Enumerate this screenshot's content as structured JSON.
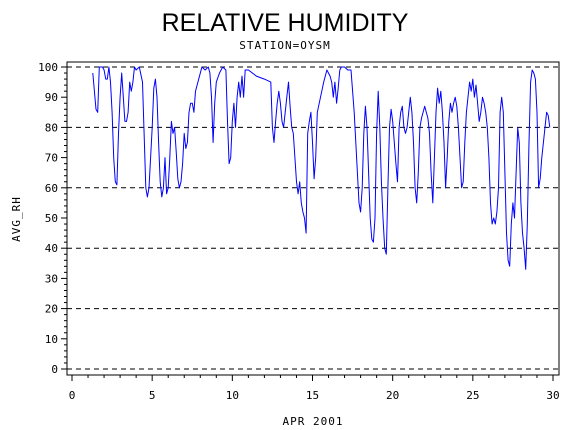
{
  "chart_data": {
    "type": "line",
    "title": "RELATIVE HUMIDITY",
    "subtitle": "STATION=OYSM",
    "xlabel": "APR 2001",
    "ylabel": "AVG_RH",
    "xlim": [
      0,
      30
    ],
    "ylim": [
      0,
      100
    ],
    "x_ticks": [
      0,
      5,
      10,
      15,
      20,
      25,
      30
    ],
    "y_ticks": [
      0,
      10,
      20,
      30,
      40,
      50,
      60,
      70,
      80,
      90,
      100
    ],
    "grid": "horizontal dashed at 0, 20, 40, 60, 80, 100",
    "series": [
      {
        "color": "#0000ff",
        "points": [
          [
            1.3,
            98
          ],
          [
            1.5,
            86
          ],
          [
            1.6,
            85
          ],
          [
            1.7,
            100
          ],
          [
            1.9,
            100
          ],
          [
            2.0,
            99
          ],
          [
            2.1,
            96
          ],
          [
            2.2,
            96
          ],
          [
            2.3,
            100
          ],
          [
            2.4,
            95
          ],
          [
            2.5,
            85
          ],
          [
            2.6,
            70
          ],
          [
            2.7,
            62
          ],
          [
            2.8,
            61
          ],
          [
            2.9,
            78
          ],
          [
            3.0,
            90
          ],
          [
            3.1,
            98
          ],
          [
            3.2,
            90
          ],
          [
            3.3,
            82
          ],
          [
            3.4,
            82
          ],
          [
            3.5,
            85
          ],
          [
            3.6,
            95
          ],
          [
            3.7,
            92
          ],
          [
            3.8,
            95
          ],
          [
            3.9,
            100
          ],
          [
            4.0,
            99
          ],
          [
            4.2,
            100
          ],
          [
            4.4,
            95
          ],
          [
            4.6,
            60
          ],
          [
            4.7,
            57
          ],
          [
            4.8,
            60
          ],
          [
            5.0,
            80
          ],
          [
            5.1,
            93
          ],
          [
            5.2,
            96
          ],
          [
            5.3,
            90
          ],
          [
            5.4,
            75
          ],
          [
            5.5,
            62
          ],
          [
            5.6,
            57
          ],
          [
            5.7,
            60
          ],
          [
            5.8,
            70
          ],
          [
            5.9,
            58
          ],
          [
            6.0,
            60
          ],
          [
            6.1,
            70
          ],
          [
            6.2,
            82
          ],
          [
            6.3,
            78
          ],
          [
            6.4,
            80
          ],
          [
            6.5,
            72
          ],
          [
            6.6,
            63
          ],
          [
            6.7,
            60
          ],
          [
            6.8,
            62
          ],
          [
            6.9,
            68
          ],
          [
            7.0,
            78
          ],
          [
            7.1,
            73
          ],
          [
            7.2,
            75
          ],
          [
            7.3,
            85
          ],
          [
            7.4,
            88
          ],
          [
            7.5,
            88
          ],
          [
            7.6,
            85
          ],
          [
            7.7,
            92
          ],
          [
            7.9,
            96
          ],
          [
            8.1,
            100
          ],
          [
            8.3,
            99
          ],
          [
            8.5,
            100
          ],
          [
            8.6,
            98
          ],
          [
            8.7,
            90
          ],
          [
            8.8,
            75
          ],
          [
            8.9,
            88
          ],
          [
            9.0,
            95
          ],
          [
            9.2,
            98
          ],
          [
            9.4,
            100
          ],
          [
            9.6,
            99
          ],
          [
            9.7,
            82
          ],
          [
            9.8,
            68
          ],
          [
            9.9,
            70
          ],
          [
            10.0,
            82
          ],
          [
            10.1,
            88
          ],
          [
            10.2,
            80
          ],
          [
            10.3,
            90
          ],
          [
            10.4,
            95
          ],
          [
            10.5,
            90
          ],
          [
            10.6,
            97
          ],
          [
            10.7,
            90
          ],
          [
            10.8,
            99
          ],
          [
            11.0,
            99
          ],
          [
            11.5,
            97
          ],
          [
            12.0,
            96
          ],
          [
            12.4,
            95
          ],
          [
            12.5,
            80
          ],
          [
            12.6,
            75
          ],
          [
            12.7,
            82
          ],
          [
            12.8,
            88
          ],
          [
            12.9,
            92
          ],
          [
            13.0,
            88
          ],
          [
            13.1,
            82
          ],
          [
            13.2,
            80
          ],
          [
            13.3,
            85
          ],
          [
            13.4,
            90
          ],
          [
            13.5,
            95
          ],
          [
            13.6,
            87
          ],
          [
            13.7,
            80
          ],
          [
            13.8,
            78
          ],
          [
            13.9,
            70
          ],
          [
            14.0,
            62
          ],
          [
            14.1,
            58
          ],
          [
            14.2,
            62
          ],
          [
            14.3,
            55
          ],
          [
            14.4,
            52
          ],
          [
            14.5,
            50
          ],
          [
            14.6,
            45
          ],
          [
            14.7,
            78
          ],
          [
            14.8,
            82
          ],
          [
            14.9,
            85
          ],
          [
            15.0,
            75
          ],
          [
            15.1,
            63
          ],
          [
            15.2,
            70
          ],
          [
            15.3,
            85
          ],
          [
            15.5,
            90
          ],
          [
            15.7,
            95
          ],
          [
            15.9,
            99
          ],
          [
            16.1,
            97
          ],
          [
            16.2,
            95
          ],
          [
            16.3,
            90
          ],
          [
            16.4,
            95
          ],
          [
            16.5,
            88
          ],
          [
            16.6,
            93
          ],
          [
            16.7,
            99
          ],
          [
            16.8,
            100
          ],
          [
            17.0,
            100
          ],
          [
            17.2,
            99
          ],
          [
            17.4,
            99
          ],
          [
            17.5,
            92
          ],
          [
            17.6,
            85
          ],
          [
            17.7,
            75
          ],
          [
            17.8,
            65
          ],
          [
            17.9,
            55
          ],
          [
            18.0,
            52
          ],
          [
            18.1,
            60
          ],
          [
            18.2,
            78
          ],
          [
            18.3,
            87
          ],
          [
            18.4,
            80
          ],
          [
            18.5,
            65
          ],
          [
            18.6,
            50
          ],
          [
            18.7,
            43
          ],
          [
            18.8,
            42
          ],
          [
            18.9,
            50
          ],
          [
            19.0,
            78
          ],
          [
            19.1,
            92
          ],
          [
            19.2,
            80
          ],
          [
            19.3,
            62
          ],
          [
            19.4,
            50
          ],
          [
            19.5,
            40
          ],
          [
            19.6,
            38
          ],
          [
            19.7,
            60
          ],
          [
            19.8,
            80
          ],
          [
            19.9,
            86
          ],
          [
            20.0,
            82
          ],
          [
            20.1,
            75
          ],
          [
            20.2,
            68
          ],
          [
            20.3,
            62
          ],
          [
            20.4,
            80
          ],
          [
            20.5,
            85
          ],
          [
            20.6,
            87
          ],
          [
            20.7,
            80
          ],
          [
            20.8,
            78
          ],
          [
            20.9,
            80
          ],
          [
            21.0,
            85
          ],
          [
            21.1,
            90
          ],
          [
            21.2,
            85
          ],
          [
            21.3,
            75
          ],
          [
            21.4,
            60
          ],
          [
            21.5,
            55
          ],
          [
            21.6,
            65
          ],
          [
            21.7,
            80
          ],
          [
            21.8,
            83
          ],
          [
            21.9,
            85
          ],
          [
            22.0,
            87
          ],
          [
            22.1,
            85
          ],
          [
            22.2,
            83
          ],
          [
            22.3,
            78
          ],
          [
            22.4,
            65
          ],
          [
            22.5,
            55
          ],
          [
            22.6,
            70
          ],
          [
            22.7,
            85
          ],
          [
            22.8,
            93
          ],
          [
            22.9,
            88
          ],
          [
            23.0,
            92
          ],
          [
            23.1,
            85
          ],
          [
            23.2,
            75
          ],
          [
            23.3,
            60
          ],
          [
            23.4,
            70
          ],
          [
            23.5,
            82
          ],
          [
            23.6,
            88
          ],
          [
            23.7,
            85
          ],
          [
            23.8,
            88
          ],
          [
            23.9,
            90
          ],
          [
            24.0,
            87
          ],
          [
            24.1,
            80
          ],
          [
            24.2,
            70
          ],
          [
            24.3,
            60
          ],
          [
            24.4,
            62
          ],
          [
            24.5,
            75
          ],
          [
            24.6,
            85
          ],
          [
            24.7,
            90
          ],
          [
            24.8,
            95
          ],
          [
            24.9,
            92
          ],
          [
            25.0,
            96
          ],
          [
            25.1,
            90
          ],
          [
            25.2,
            94
          ],
          [
            25.3,
            88
          ],
          [
            25.4,
            82
          ],
          [
            25.5,
            85
          ],
          [
            25.6,
            90
          ],
          [
            25.7,
            88
          ],
          [
            25.8,
            85
          ],
          [
            25.9,
            80
          ],
          [
            26.0,
            70
          ],
          [
            26.1,
            55
          ],
          [
            26.2,
            48
          ],
          [
            26.3,
            50
          ],
          [
            26.4,
            48
          ],
          [
            26.5,
            52
          ],
          [
            26.6,
            60
          ],
          [
            26.7,
            85
          ],
          [
            26.8,
            90
          ],
          [
            26.9,
            85
          ],
          [
            27.0,
            65
          ],
          [
            27.1,
            45
          ],
          [
            27.2,
            36
          ],
          [
            27.3,
            34
          ],
          [
            27.4,
            48
          ],
          [
            27.5,
            55
          ],
          [
            27.6,
            50
          ],
          [
            27.7,
            65
          ],
          [
            27.8,
            80
          ],
          [
            27.9,
            75
          ],
          [
            28.0,
            55
          ],
          [
            28.1,
            45
          ],
          [
            28.2,
            40
          ],
          [
            28.3,
            33
          ],
          [
            28.4,
            48
          ],
          [
            28.5,
            75
          ],
          [
            28.6,
            95
          ],
          [
            28.7,
            99
          ],
          [
            28.8,
            98
          ],
          [
            28.9,
            96
          ],
          [
            29.0,
            85
          ],
          [
            29.1,
            60
          ],
          [
            29.2,
            63
          ],
          [
            29.3,
            70
          ],
          [
            29.4,
            75
          ],
          [
            29.5,
            80
          ],
          [
            29.6,
            85
          ],
          [
            29.7,
            84
          ],
          [
            29.8,
            80
          ]
        ]
      }
    ]
  }
}
